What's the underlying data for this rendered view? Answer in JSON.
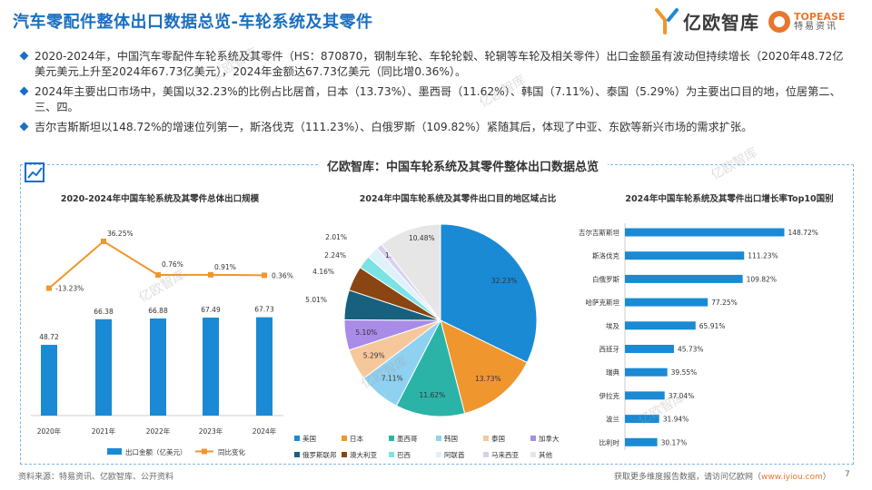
{
  "header": {
    "title": "汽车零配件整体出口数据总览-车轮系统及其零件",
    "logo_yiou": "亿欧智库",
    "logo_topease_en": "TOPEASE",
    "logo_topease_cn": "特易资讯"
  },
  "bullets": [
    "2020-2024年，中国汽车零配件车轮系统及其零件（HS：870870，钢制车轮、车轮轮毂、轮辋等车轮及相关零件）出口金额虽有波动但持续增长（2020年48.72亿美元美元上升至2024年67.73亿美元），2024年金额达67.73亿美元（同比增0.36%）。",
    "2024年主要出口市场中，美国以32.23%的比例占比居首，日本（13.73%）、墨西哥（11.62%）、韩国（7.11%）、泰国（5.29%）为主要出口目的地，位居第二、三、四。",
    "吉尔吉斯斯坦以148.72%的增速位列第一，斯洛伐克（111.23%）、白俄罗斯（109.82%）紧随其后，体现了中亚、东欧等新兴市场的需求扩张。"
  ],
  "panel": {
    "title": "亿欧智库：中国车轮系统及其零件整体出口数据总览"
  },
  "watermark": "亿欧智库",
  "footer": {
    "source": "资料来源：特易资讯、亿欧智库、公开资料",
    "more": "获取更多维度报告数据，请访问亿欧网（",
    "url": "www.iyiou.com",
    "more_end": "）",
    "page": "7"
  },
  "chart_data": [
    {
      "type": "bar",
      "title": "2020-2024年中国车轮系统及其零件总体出口规模",
      "categories": [
        "2020年",
        "2021年",
        "2022年",
        "2023年",
        "2024年"
      ],
      "series": [
        {
          "name": "出口金额（亿美元）",
          "values": [
            48.72,
            66.38,
            66.88,
            67.49,
            67.73
          ],
          "labels": [
            "48.72",
            "66.38",
            "66.88",
            "67.49",
            "67.73"
          ],
          "color": "#1a8ad4"
        },
        {
          "name": "同比变化",
          "type": "line",
          "values": [
            -13.23,
            36.25,
            0.76,
            0.91,
            0.36
          ],
          "labels": [
            "-13.23%",
            "36.25%",
            "0.76%",
            "0.91%",
            "0.36%"
          ],
          "color": "#f0962e"
        }
      ],
      "ylim": [
        0,
        80
      ],
      "legend": "bottom"
    },
    {
      "type": "pie",
      "title": "2024年中国车轮系统及其零件出口目的地区域占比",
      "labels": [
        "美国",
        "日本",
        "墨西哥",
        "韩国",
        "泰国",
        "加拿大",
        "俄罗斯联邦",
        "澳大利亚",
        "巴西",
        "阿联酋",
        "马来西亚",
        "其他"
      ],
      "values": [
        32.23,
        13.73,
        11.62,
        7.11,
        5.29,
        5.1,
        5.01,
        4.16,
        2.24,
        2.01,
        1.02,
        10.48
      ],
      "value_labels": [
        "32.23%",
        "13.73%",
        "11.62%",
        "7.11%",
        "5.29%",
        "5.10%",
        "5.01%",
        "4.16%",
        "2.24%",
        "2.01%",
        "1.02%",
        "10.48%"
      ],
      "colors": [
        "#1a8ad4",
        "#f0962e",
        "#2bb3a8",
        "#8fd1f0",
        "#f6c79b",
        "#a98be8",
        "#17617e",
        "#8a4513",
        "#7be3e6",
        "#dff1fb",
        "#d8d0f2",
        "#e6e6e6"
      ],
      "legend": "bottom"
    },
    {
      "type": "bar",
      "orientation": "horizontal",
      "title": "2024年中国车轮系统及其零件出口增长率Top10国别",
      "categories": [
        "吉尔吉斯斯坦",
        "斯洛伐克",
        "白俄罗斯",
        "哈萨克斯坦",
        "埃及",
        "西班牙",
        "瑞典",
        "伊拉克",
        "波兰",
        "比利时"
      ],
      "values": [
        148.72,
        111.23,
        109.82,
        77.25,
        65.91,
        45.73,
        39.55,
        37.04,
        31.94,
        30.17
      ],
      "value_labels": [
        "148.72%",
        "111.23%",
        "109.82%",
        "77.25%",
        "65.91%",
        "45.73%",
        "39.55%",
        "37.04%",
        "31.94%",
        "30.17%"
      ],
      "color": "#1a8ad4",
      "xlim": [
        0,
        160
      ]
    }
  ]
}
